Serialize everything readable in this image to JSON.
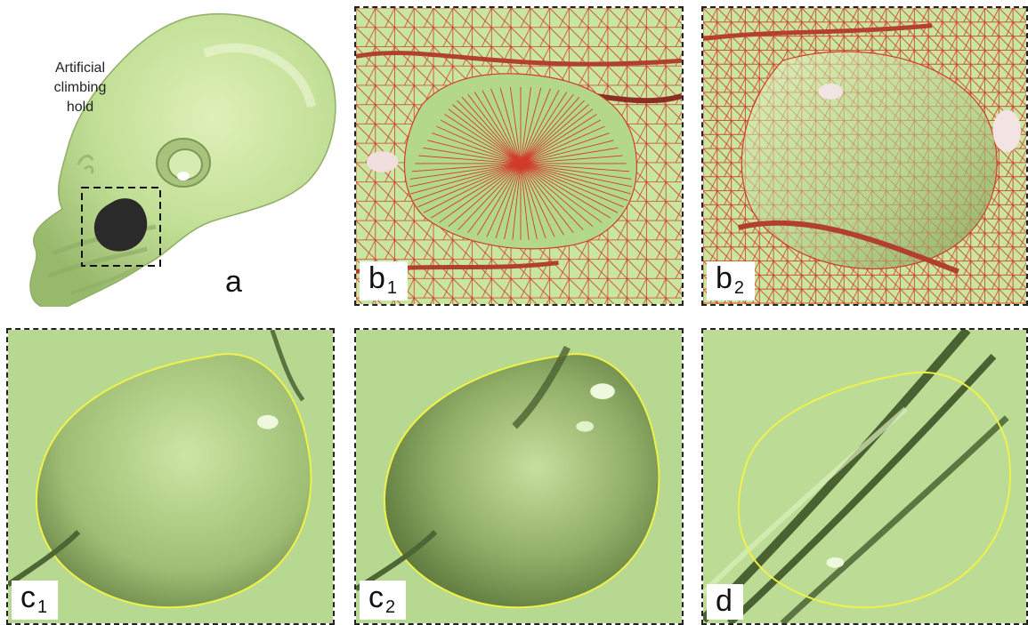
{
  "panels": {
    "a": {
      "label": "a",
      "caption": [
        "Artificial",
        "climbing",
        "hold"
      ]
    },
    "b1": {
      "letter": "b",
      "index": "1"
    },
    "b2": {
      "letter": "b",
      "index": "2"
    },
    "c1": {
      "letter": "c",
      "index": "1"
    },
    "c2": {
      "letter": "c",
      "index": "2"
    },
    "d": {
      "letter": "d"
    }
  },
  "colors": {
    "surface": "#c5e49a",
    "surface_shadow": "#7f9a57",
    "mesh_edges": "#d23a2a",
    "hole_boundary": "#f0f24a",
    "hole_fill": "#2a2a2a"
  }
}
